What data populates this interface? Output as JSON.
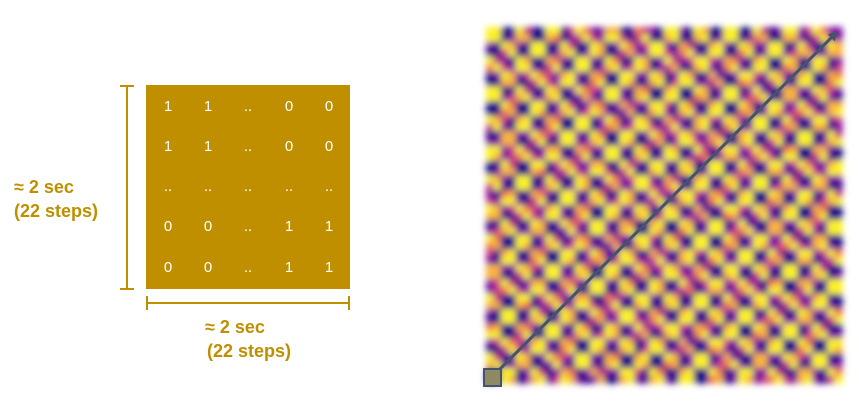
{
  "kernel": {
    "rows": [
      [
        "1",
        "1",
        "..",
        "0",
        "0"
      ],
      [
        "1",
        "1",
        "..",
        "0",
        "0"
      ],
      [
        "..",
        "..",
        "..",
        "..",
        ".."
      ],
      [
        "0",
        "0",
        "..",
        "1",
        "1"
      ],
      [
        "0",
        "0",
        "..",
        "1",
        "1"
      ]
    ],
    "color": "#bf8f00",
    "text_color": "#ffffff"
  },
  "vertical_label": {
    "line1": "≈ 2 sec",
    "line2": "(22 steps)"
  },
  "horizontal_label": {
    "line1": "≈ 2 sec",
    "line2": "(22 steps)"
  },
  "ssm": {
    "colormap": [
      "#1a0a8c",
      "#7a0fa0",
      "#c43a86",
      "#f07a50",
      "#f8b43c",
      "#fcf224"
    ],
    "arrow_color": "#44546a",
    "kernel_marker_color": "#8d8a63"
  }
}
